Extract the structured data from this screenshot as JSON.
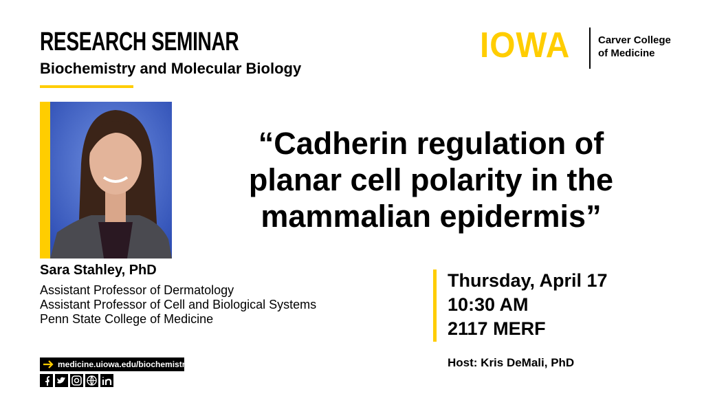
{
  "header": {
    "title": "RESEARCH SEMINAR",
    "subtitle": "Biochemistry and Molecular Biology"
  },
  "logo": {
    "wordmark": "IOWA",
    "college": [
      "Carver College",
      "of Medicine"
    ]
  },
  "speaker": {
    "name": "Sara Stahley, PhD",
    "affiliations": [
      "Assistant Professor of Dermatology",
      "Assistant Professor of Cell and Biological Systems",
      "Penn State College of Medicine"
    ]
  },
  "talk": {
    "title_lines": [
      "“Cadherin regulation of",
      "planar cell polarity in the",
      "mammalian epidermis”"
    ]
  },
  "event": {
    "date": "Thursday, April 17",
    "time": "10:30 AM",
    "location": "2117 MERF",
    "host": "Host: Kris DeMali, PhD"
  },
  "footer": {
    "url": "medicine.uiowa.edu/biochemistry"
  }
}
